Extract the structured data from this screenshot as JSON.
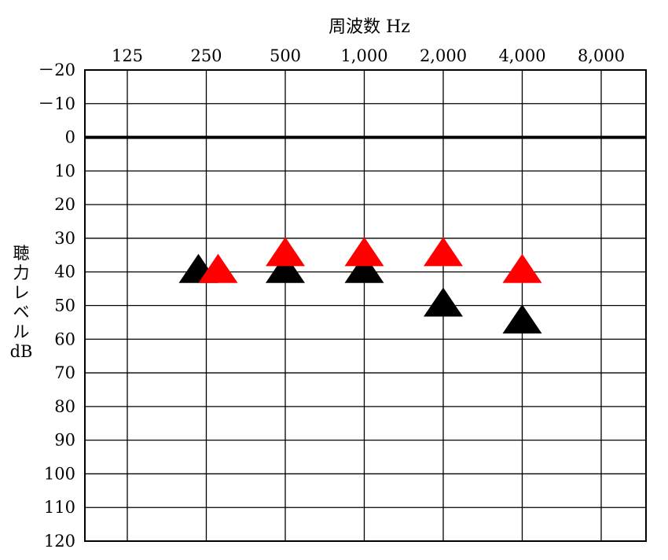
{
  "chart_data": {
    "type": "scatter",
    "title": "",
    "xlabel": "周波数 Hz",
    "ylabel_lines": [
      "聴",
      "力",
      "レ",
      "ベ",
      "ル",
      "dB"
    ],
    "x_tick_labels": [
      "125",
      "250",
      "500",
      "1,000",
      "2,000",
      "4,000",
      "8,000"
    ],
    "x": [
      125,
      250,
      500,
      1000,
      2000,
      4000,
      8000
    ],
    "x_scale": "log2",
    "y_tick_labels": [
      "－20",
      "－10",
      "0",
      "10",
      "20",
      "30",
      "40",
      "50",
      "60",
      "70",
      "80",
      "90",
      "100",
      "110",
      "120"
    ],
    "ylim": [
      -20,
      120
    ],
    "y_inverted": true,
    "grid": true,
    "series": [
      {
        "color": "#000000",
        "marker": "triangle",
        "points": [
          {
            "x": 250,
            "y": 40
          },
          {
            "x": 500,
            "y": 40
          },
          {
            "x": 1000,
            "y": 40
          },
          {
            "x": 2000,
            "y": 50
          },
          {
            "x": 4000,
            "y": 55
          }
        ]
      },
      {
        "color": "#ff0000",
        "marker": "triangle",
        "points": [
          {
            "x": 250,
            "y": 40
          },
          {
            "x": 500,
            "y": 35
          },
          {
            "x": 1000,
            "y": 35
          },
          {
            "x": 2000,
            "y": 35
          },
          {
            "x": 4000,
            "y": 40
          }
        ]
      }
    ]
  }
}
